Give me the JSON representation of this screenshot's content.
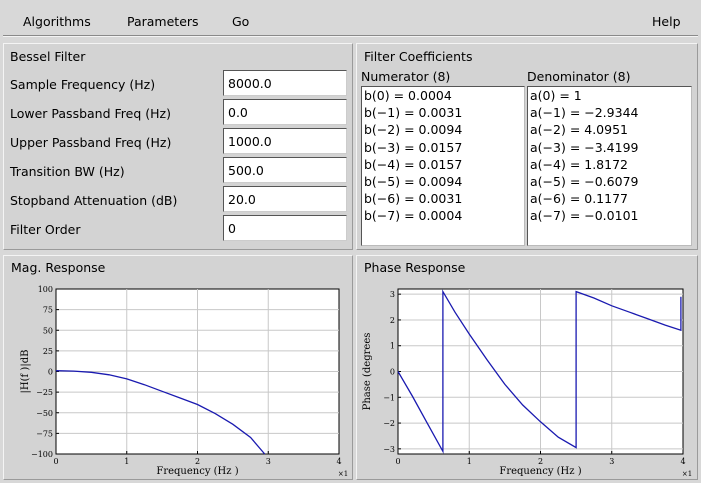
{
  "menu": {
    "items": [
      "Algorithms",
      "Parameters",
      "Go"
    ],
    "help": "Help"
  },
  "bessel": {
    "title": "Bessel Filter",
    "fields": [
      {
        "label": "Sample Frequency (Hz)",
        "value": "8000.0"
      },
      {
        "label": "Lower Passband Freq (Hz)",
        "value": "0.0"
      },
      {
        "label": "Upper Passband Freq (Hz)",
        "value": "1000.0"
      },
      {
        "label": "Transition BW (Hz)",
        "value": "500.0"
      },
      {
        "label": "Stopband Attenuation (dB)",
        "value": "20.0"
      },
      {
        "label": "Filter Order",
        "value": "0"
      }
    ]
  },
  "coefficients": {
    "title": "Filter Coefficients",
    "numerator_header": "Numerator (8)",
    "denominator_header": "Denominator (8)",
    "numerator": [
      "b(0) = 0.0004",
      "b(−1) = 0.0031",
      "b(−2) = 0.0094",
      "b(−3) = 0.0157",
      "b(−4) = 0.0157",
      "b(−5) = 0.0094",
      "b(−6) = 0.0031",
      "b(−7) = 0.0004"
    ],
    "denominator": [
      "a(0) = 1",
      "a(−1) = −2.9344",
      "a(−2) = 4.0951",
      "a(−3) = −3.4199",
      "a(−4) = 1.8172",
      "a(−5) = −0.6079",
      "a(−6) = 0.1177",
      "a(−7) = −0.0101"
    ]
  },
  "mag_panel": {
    "title": "Mag. Response"
  },
  "phase_panel": {
    "title": "Phase Response"
  },
  "chart_data": [
    {
      "type": "line",
      "title": "",
      "xlabel": "Frequency (Hz )",
      "ylabel": "|H(f )|dB",
      "x_multiplier": "×1",
      "xlim": [
        0,
        4
      ],
      "ylim": [
        -100,
        100
      ],
      "xticks": [
        0,
        1,
        2,
        3,
        4
      ],
      "yticks": [
        -100,
        -75,
        -50,
        -25,
        0,
        25,
        50,
        75,
        100
      ],
      "grid": true,
      "color": "#1a1ab0",
      "x": [
        0,
        0.25,
        0.5,
        0.75,
        1.0,
        1.25,
        1.5,
        1.75,
        2.0,
        2.25,
        2.5,
        2.75,
        2.95
      ],
      "y": [
        1,
        0.5,
        -1,
        -4,
        -9,
        -16,
        -24,
        -32,
        -40,
        -51,
        -64,
        -80,
        -100
      ]
    },
    {
      "type": "line",
      "title": "",
      "xlabel": "Frequency (Hz )",
      "ylabel": "Phase (degrees",
      "x_multiplier": "×1",
      "xlim": [
        0,
        4
      ],
      "ylim": [
        -3.2,
        3.2
      ],
      "xticks": [
        0,
        1,
        2,
        3,
        4
      ],
      "yticks": [
        -3,
        -2,
        -1,
        0,
        1,
        2,
        3
      ],
      "grid": true,
      "color": "#1a1ab0",
      "x": [
        0,
        0.2,
        0.4,
        0.63,
        0.63,
        0.8,
        1.0,
        1.25,
        1.5,
        1.75,
        2.0,
        2.25,
        2.5,
        2.5,
        2.75,
        3.0,
        3.25,
        3.5,
        3.75,
        3.97,
        3.97
      ],
      "y": [
        0,
        -0.95,
        -1.95,
        -3.1,
        3.1,
        2.3,
        1.45,
        0.45,
        -0.5,
        -1.3,
        -1.95,
        -2.55,
        -2.95,
        3.1,
        2.85,
        2.55,
        2.3,
        2.05,
        1.8,
        1.6,
        2.9
      ]
    }
  ]
}
